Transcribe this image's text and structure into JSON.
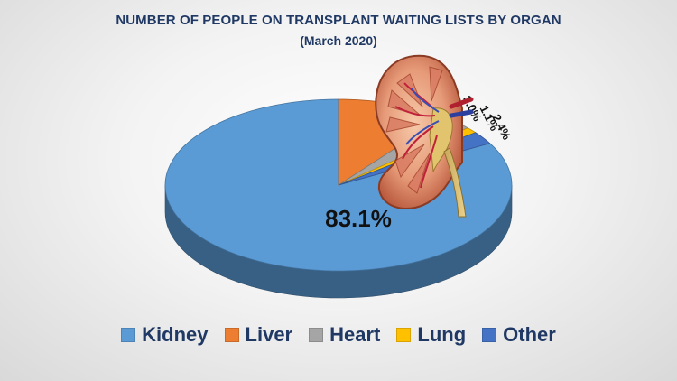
{
  "chart_data": {
    "type": "pie",
    "title": "NUMBER OF PEOPLE ON TRANSPLANT WAITING LISTS BY ORGAN",
    "subtitle": "(March 2020)",
    "legend_position": "bottom",
    "style": "3d",
    "slices": [
      {
        "name": "Kidney",
        "value": 83.1,
        "label": "83.1%",
        "color": "#5b9bd5"
      },
      {
        "name": "Liver",
        "value": 10.4,
        "label": "10.4%",
        "color": "#ed7d31"
      },
      {
        "name": "Heart",
        "value": 3.0,
        "label": "3.0%",
        "color": "#a5a5a5"
      },
      {
        "name": "Lung",
        "value": 1.1,
        "label": "1.1%",
        "color": "#ffc000"
      },
      {
        "name": "Other",
        "value": 2.4,
        "label": "2.4%",
        "color": "#4472c4"
      }
    ]
  },
  "illustration": "kidney-cross-section"
}
